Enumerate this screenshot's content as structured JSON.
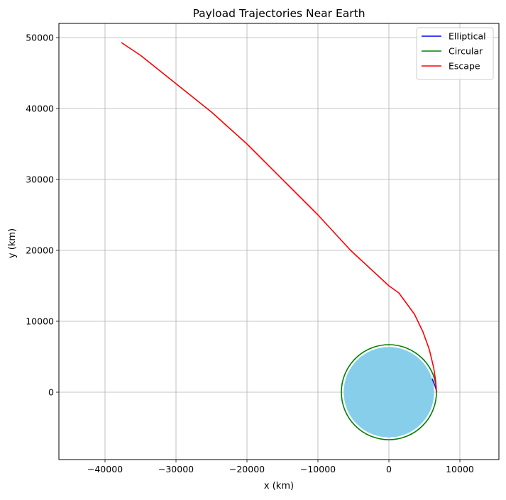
{
  "chart_data": {
    "type": "line",
    "title": "Payload Trajectories Near Earth",
    "xlabel": "x (km)",
    "ylabel": "y (km)",
    "xlim": [
      -46500,
      15500
    ],
    "ylim": [
      -9500,
      52000
    ],
    "xticks": [
      -40000,
      -30000,
      -20000,
      -10000,
      0,
      10000
    ],
    "xtick_labels": [
      "−40000",
      "−30000",
      "−20000",
      "−10000",
      "0",
      "10000"
    ],
    "yticks": [
      0,
      10000,
      20000,
      30000,
      40000,
      50000
    ],
    "ytick_labels": [
      "0",
      "10000",
      "20000",
      "30000",
      "40000",
      "50000"
    ],
    "grid": true,
    "legend_position": "top-right",
    "earth": {
      "center": [
        0,
        0
      ],
      "radius_km": 6371,
      "color": "#87ceeb"
    },
    "series": [
      {
        "name": "Elliptical",
        "color": "#0000ff",
        "points": [
          [
            6100,
            1900
          ],
          [
            6300,
            1400
          ],
          [
            6500,
            900
          ],
          [
            6650,
            400
          ],
          [
            6700,
            0
          ]
        ]
      },
      {
        "name": "Circular",
        "color": "#008000",
        "circle": {
          "center": [
            0,
            0
          ],
          "radius_km": 6700
        }
      },
      {
        "name": "Escape",
        "color": "#ff0000",
        "points": [
          [
            6700,
            0
          ],
          [
            6600,
            1500
          ],
          [
            6300,
            3500
          ],
          [
            5700,
            6000
          ],
          [
            4800,
            8500
          ],
          [
            3600,
            11000
          ],
          [
            1400,
            14000
          ],
          [
            0,
            15000
          ],
          [
            -2700,
            17500
          ],
          [
            -5400,
            20000
          ],
          [
            -10000,
            25000
          ],
          [
            -14000,
            29000
          ],
          [
            -18000,
            33000
          ],
          [
            -20000,
            35000
          ],
          [
            -25000,
            39500
          ],
          [
            -30000,
            43500
          ],
          [
            -35000,
            47500
          ],
          [
            -37700,
            49300
          ]
        ]
      }
    ]
  }
}
